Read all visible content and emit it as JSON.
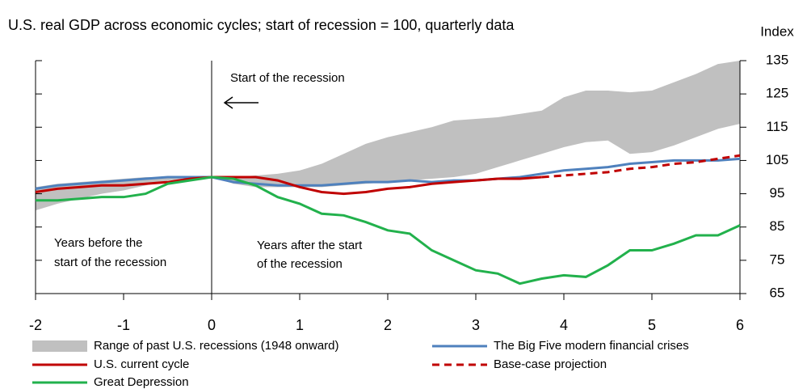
{
  "chart_data": {
    "type": "line",
    "title": "U.S. real GDP across economic cycles; start of recession = 100, quarterly data",
    "y_axis_label": "Index",
    "x": [
      -2,
      -1.75,
      -1.5,
      -1.25,
      -1,
      -0.75,
      -0.5,
      -0.25,
      0,
      0.25,
      0.5,
      0.75,
      1,
      1.25,
      1.5,
      1.75,
      2,
      2.25,
      2.5,
      2.75,
      3,
      3.25,
      3.5,
      3.75,
      4,
      4.25,
      4.5,
      4.75,
      5,
      5.25,
      5.5,
      5.75,
      6
    ],
    "band": {
      "name": "Range of past U.S. recessions (1948 onward)",
      "color": "#c0c0c0",
      "upper": [
        97,
        98,
        98.5,
        99,
        99.5,
        100,
        100,
        100,
        100,
        100,
        100.5,
        101,
        102,
        104,
        107,
        110,
        112,
        113.5,
        115,
        117,
        117.5,
        118,
        119,
        120,
        124,
        126,
        126,
        125.5,
        126,
        128.5,
        131,
        134,
        135
      ],
      "lower": [
        90,
        92,
        93.5,
        95,
        96,
        97.5,
        99,
        99.5,
        100,
        98,
        97,
        97,
        97,
        97,
        97.5,
        98,
        98.5,
        99,
        99.5,
        100,
        101,
        103,
        105,
        107,
        109,
        110.5,
        111,
        107,
        107.5,
        109.5,
        112,
        114.5,
        116
      ]
    },
    "series": [
      {
        "name": "The Big Five modern financial crises",
        "color": "#4f81bd",
        "values": [
          96.5,
          97.5,
          98,
          98.5,
          99,
          99.5,
          100,
          100,
          100,
          98.5,
          98,
          97.5,
          97.5,
          97.5,
          98,
          98.5,
          98.5,
          99,
          98.5,
          99,
          99,
          99.5,
          100,
          101,
          102,
          102.5,
          103,
          104,
          104.5,
          105,
          105,
          105,
          105.5
        ]
      },
      {
        "name": "U.S. current cycle",
        "color": "#c00000",
        "values": [
          95.5,
          96.5,
          97,
          97.5,
          97.5,
          98,
          98.5,
          99.5,
          100,
          100,
          100,
          99,
          97,
          95.5,
          95,
          95.5,
          96.5,
          97,
          98,
          98.5,
          99,
          99.5,
          99.5,
          100,
          null,
          null,
          null,
          null,
          null,
          null,
          null,
          null,
          null
        ]
      },
      {
        "name": "Base-case projection",
        "color": "#c00000",
        "dashed": true,
        "values": [
          null,
          null,
          null,
          null,
          null,
          null,
          null,
          null,
          null,
          null,
          null,
          null,
          null,
          null,
          null,
          null,
          null,
          null,
          null,
          null,
          null,
          null,
          null,
          100,
          100.5,
          101,
          101.5,
          102.5,
          103,
          104,
          104.5,
          105.5,
          106.5
        ]
      },
      {
        "name": "Great Depression",
        "color": "#22b14c",
        "values": [
          93,
          93,
          93.5,
          94,
          94,
          95,
          98,
          99,
          100,
          99.5,
          97.5,
          94,
          92,
          89,
          88.5,
          86.5,
          84,
          83,
          78,
          75,
          72,
          71,
          68,
          69.5,
          70.5,
          70,
          73.5,
          78,
          78,
          80,
          82.5,
          82.5,
          85.5
        ]
      }
    ],
    "xlim": [
      -2,
      6
    ],
    "xticks": [
      -2,
      -1,
      0,
      1,
      2,
      3,
      4,
      5,
      6
    ],
    "ylim": [
      65,
      135
    ],
    "yticks": [
      65,
      75,
      85,
      95,
      105,
      115,
      125,
      135
    ],
    "marker_x": 0,
    "annotations": [
      "Start of the recession",
      "Years before the",
      "start of the recession",
      "Years after the start",
      "of the recession"
    ]
  }
}
